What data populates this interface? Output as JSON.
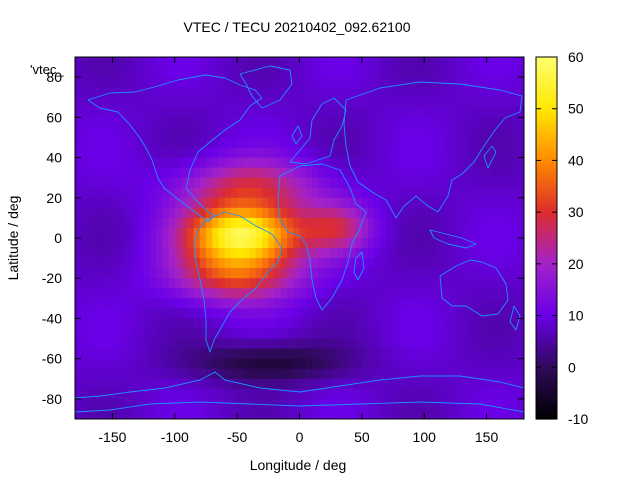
{
  "chart_data": {
    "type": "heatmap",
    "title": "VTEC / TECU 20210402_092.62100",
    "xlabel": "Longitude / deg",
    "ylabel": "Latitude / deg",
    "key_label": "'vtec_",
    "xlim": [
      -180,
      180
    ],
    "ylim": [
      -90,
      90
    ],
    "x_ticks": [
      -150,
      -100,
      -50,
      0,
      50,
      100,
      150
    ],
    "y_ticks": [
      -80,
      -60,
      -40,
      -20,
      0,
      20,
      40,
      60,
      80
    ],
    "colorbar": {
      "range": [
        -10,
        60
      ],
      "ticks": [
        -10,
        0,
        10,
        20,
        30,
        40,
        50,
        60
      ],
      "palette": [
        "#000000",
        "#300a5c",
        "#6a00e8",
        "#a322c9",
        "#dd2d2d",
        "#ff8a00",
        "#ffe800",
        "#ffff70"
      ]
    },
    "grid": false,
    "features": [
      {
        "desc": "equatorial anomaly peak",
        "lon": -45,
        "lat": 2,
        "value": 55
      },
      {
        "desc": "northern crest",
        "lon": -40,
        "lat": 25,
        "value": 35
      },
      {
        "desc": "southern crest",
        "lon": -50,
        "lat": -18,
        "value": 40
      },
      {
        "desc": "African extension",
        "lon": 30,
        "lat": 5,
        "value": 28
      },
      {
        "desc": "background",
        "value": 8
      },
      {
        "desc": "southern low",
        "lon": -25,
        "lat": -62,
        "value": -4
      }
    ],
    "overlay": "coastlines",
    "coastline_color": "#1e90ff"
  }
}
